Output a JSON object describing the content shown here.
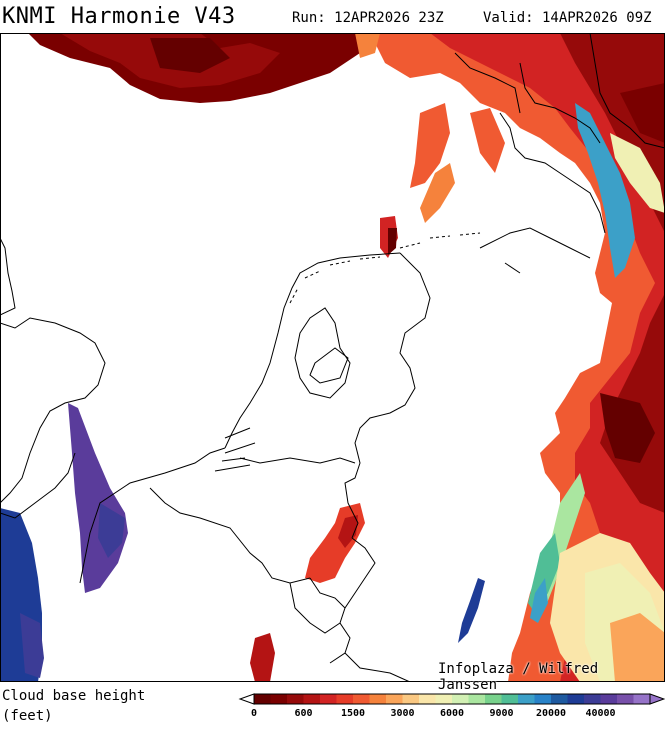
{
  "header": {
    "title": "KNMI Harmonie V43",
    "run": "Run: 12APR2026 23Z",
    "valid": "Valid: 14APR2026 09Z"
  },
  "map": {
    "credit": "Infoplaza / Wilfred Janssen",
    "background_color": "#ffffff",
    "border_color": "#000000"
  },
  "legend": {
    "title_line1": "Cloud base height",
    "title_line2": "(feet)",
    "colors": [
      "#640000",
      "#7a0000",
      "#960a0a",
      "#b41414",
      "#d22323",
      "#e63c28",
      "#f05a32",
      "#f5823c",
      "#faa55a",
      "#fac882",
      "#fae6aa",
      "#f0f0b4",
      "#d2f0b4",
      "#aae6a0",
      "#78d28c",
      "#50be96",
      "#3ca0c8",
      "#2882c8",
      "#1e5aa0",
      "#1e3c96",
      "#3c3c96",
      "#5a3c9b",
      "#7850aa",
      "#9673c8"
    ],
    "tick_labels": [
      "0",
      "600",
      "1500",
      "3000",
      "6000",
      "9000",
      "20000",
      "40000"
    ]
  }
}
